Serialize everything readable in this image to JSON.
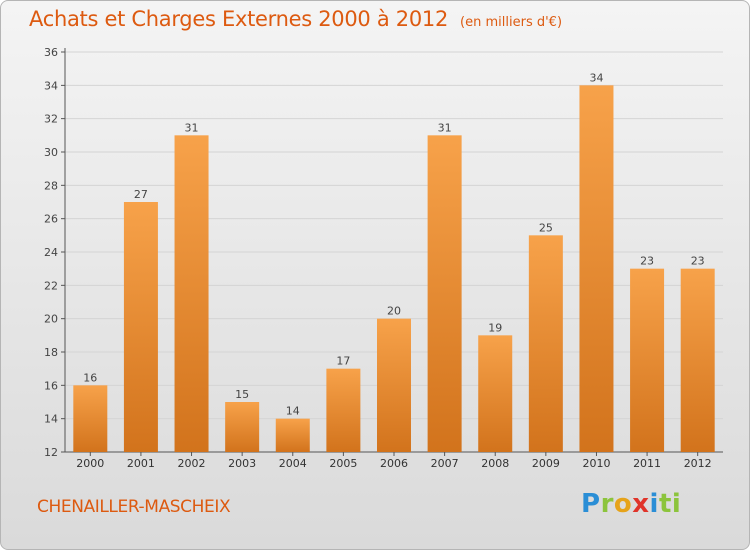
{
  "header": {
    "title": "Achats et Charges Externes 2000 à 2012",
    "unit": "(en milliers d'€)"
  },
  "footer": {
    "commune": "CHENAILLER-MASCHEIX",
    "logo_letters": [
      "P",
      "r",
      "o",
      "x",
      "i",
      "ti"
    ]
  },
  "colors": {
    "bar_top": "#f7a24a",
    "bar_bottom": "#d2731c",
    "accent": "#dd5a10",
    "grid": "#d4d4d4"
  },
  "chart_data": {
    "type": "bar",
    "title": "Achats et Charges Externes 2000 à 2012",
    "subtitle": "(en milliers d'€)",
    "categories": [
      "2000",
      "2001",
      "2002",
      "2003",
      "2004",
      "2005",
      "2006",
      "2007",
      "2008",
      "2009",
      "2010",
      "2011",
      "2012"
    ],
    "values": [
      16,
      27,
      31,
      15,
      14,
      17,
      20,
      31,
      19,
      25,
      34,
      23,
      23
    ],
    "ylim": [
      12,
      36
    ],
    "yticks": [
      12,
      14,
      16,
      18,
      20,
      22,
      24,
      26,
      28,
      30,
      32,
      34,
      36
    ],
    "grid": true,
    "xlabel": "",
    "ylabel": ""
  }
}
